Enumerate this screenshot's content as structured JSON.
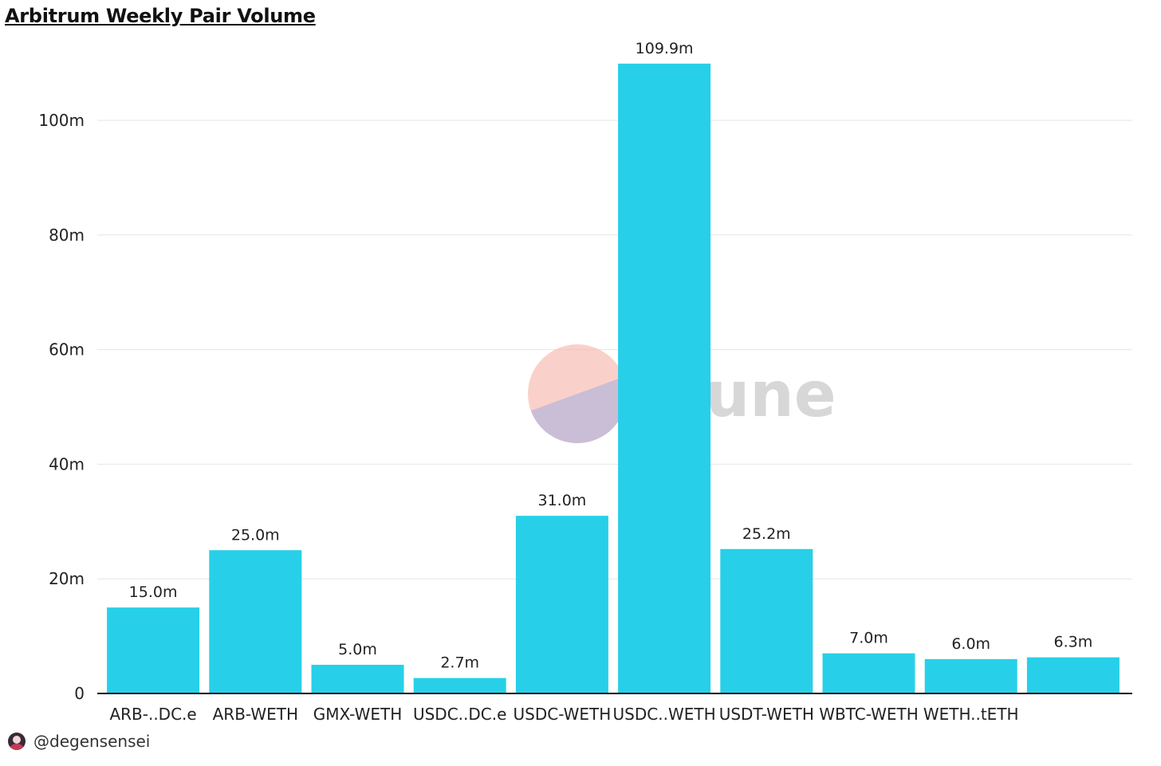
{
  "title": "Arbitrum Weekly Pair Volume",
  "watermark": {
    "text": "Dune"
  },
  "footer": {
    "handle": "@degensensei"
  },
  "colors": {
    "bar": "#27d0e8",
    "grid": "#e6e6e6",
    "axis": "#111111",
    "text": "#111111"
  },
  "chart_data": {
    "type": "bar",
    "categories": [
      "ARB-..DC.e",
      "ARB-WETH",
      "GMX-WETH",
      "USDC..DC.e",
      "USDC-WETH",
      "USDC..WETH",
      "USDT-WETH",
      "WBTC-WETH",
      "WETH..tETH",
      ""
    ],
    "values": [
      15.0,
      25.0,
      5.0,
      2.7,
      31.0,
      109.9,
      25.2,
      7.0,
      6.0,
      6.3
    ],
    "data_labels": [
      "15.0m",
      "25.0m",
      "5.0m",
      "2.7m",
      "31.0m",
      "109.9m",
      "25.2m",
      "7.0m",
      "6.0m",
      "6.3m"
    ],
    "yticks": [
      0,
      20,
      40,
      60,
      80,
      100
    ],
    "ytick_labels": [
      "0",
      "20m",
      "40m",
      "60m",
      "80m",
      "100m"
    ],
    "ylim": [
      0,
      115
    ],
    "grid": true,
    "xlabel": "",
    "ylabel": ""
  }
}
